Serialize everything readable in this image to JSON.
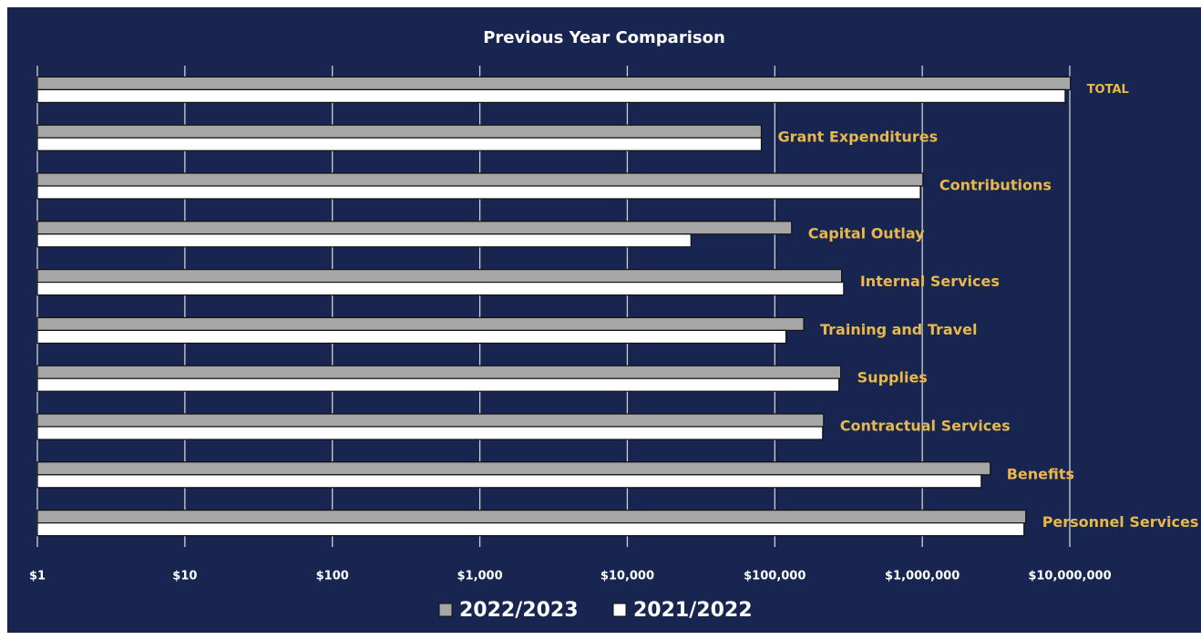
{
  "chart_data": {
    "type": "bar",
    "orientation": "horizontal",
    "title": "Previous Year Comparison",
    "categories": [
      "TOTAL",
      "Grant Expenditures",
      "Contributions",
      "Capital Outlay",
      "Internal Services",
      "Training and Travel",
      "Supplies",
      "Contractual Services",
      "Benefits",
      "Personnel Services"
    ],
    "series": [
      {
        "name": "2022/2023",
        "color": "#a6a6a6",
        "values": [
          10100000,
          81000,
          1010000,
          130000,
          284000,
          157000,
          280000,
          214000,
          2890000,
          5030000
        ]
      },
      {
        "name": "2021/2022",
        "color": "#ffffff",
        "values": [
          9300000,
          81000,
          970000,
          27000,
          293000,
          119000,
          272000,
          211000,
          2510000,
          4890000
        ]
      }
    ],
    "xscale": "log",
    "xlim": [
      1,
      10000000
    ],
    "xticks": [
      {
        "value": 1,
        "label": "$1"
      },
      {
        "value": 10,
        "label": "$10"
      },
      {
        "value": 100,
        "label": "$100"
      },
      {
        "value": 1000,
        "label": "$1,000"
      },
      {
        "value": 10000,
        "label": "$10,000"
      },
      {
        "value": 100000,
        "label": "$100,000"
      },
      {
        "value": 1000000,
        "label": "$1,000,000"
      },
      {
        "value": 10000000,
        "label": "$10,000,000"
      }
    ],
    "grid": true,
    "legend": "bottom",
    "label_color": "#e8b84a"
  }
}
